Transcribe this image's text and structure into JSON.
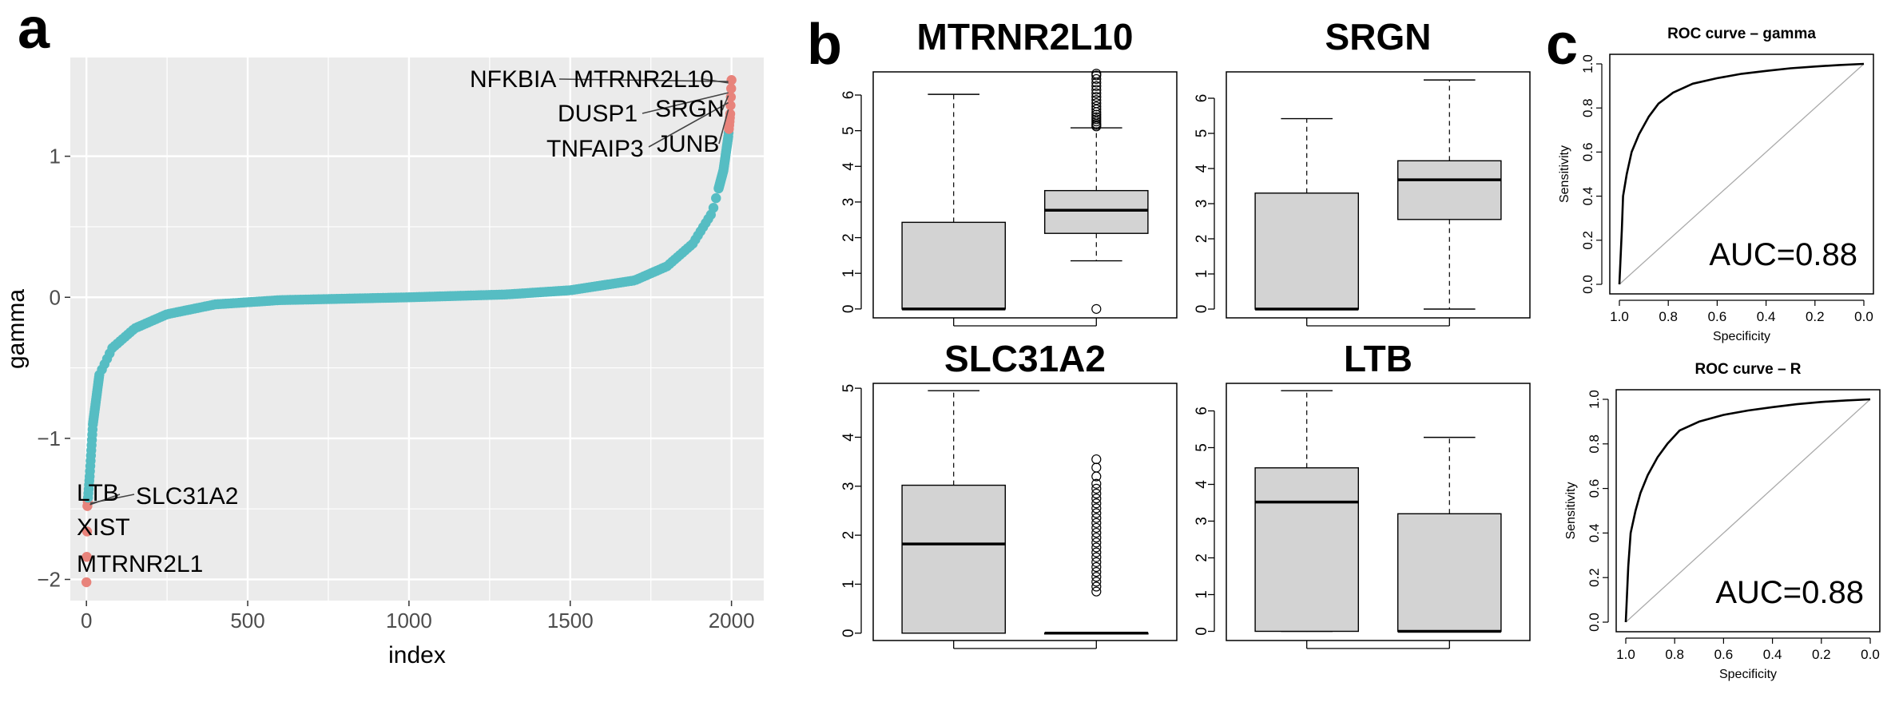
{
  "figure": {
    "panel_labels": [
      "a",
      "b",
      "c"
    ]
  },
  "chart_data": [
    {
      "id": "panel-a",
      "type": "scatter",
      "xlabel": "index",
      "ylabel": "gamma",
      "xlim": [
        -50,
        2100
      ],
      "ylim": [
        -2.15,
        1.7
      ],
      "xticks": [
        0,
        500,
        1000,
        1500,
        2000
      ],
      "yticks": [
        -2,
        -1,
        0,
        1
      ],
      "ytick_labels": [
        "−2",
        "−1",
        "0",
        "1"
      ],
      "n_points": 2000,
      "colors": {
        "normal": "#56bdc3",
        "highlight": "#e8837b",
        "background": "#ebebeb",
        "grid": "#ffffff"
      },
      "curve_anchors": [
        {
          "x": 0,
          "y": -2.02
        },
        {
          "x": 3,
          "y": -1.48
        },
        {
          "x": 10,
          "y": -1.27
        },
        {
          "x": 20,
          "y": -0.9
        },
        {
          "x": 40,
          "y": -0.55
        },
        {
          "x": 80,
          "y": -0.36
        },
        {
          "x": 150,
          "y": -0.22
        },
        {
          "x": 250,
          "y": -0.12
        },
        {
          "x": 400,
          "y": -0.05
        },
        {
          "x": 600,
          "y": -0.02
        },
        {
          "x": 1000,
          "y": 0
        },
        {
          "x": 1300,
          "y": 0.02
        },
        {
          "x": 1500,
          "y": 0.05
        },
        {
          "x": 1700,
          "y": 0.12
        },
        {
          "x": 1800,
          "y": 0.22
        },
        {
          "x": 1880,
          "y": 0.38
        },
        {
          "x": 1940,
          "y": 0.6
        },
        {
          "x": 1975,
          "y": 0.9
        },
        {
          "x": 1990,
          "y": 1.14
        },
        {
          "x": 1996,
          "y": 1.3
        },
        {
          "x": 2000,
          "y": 1.54
        }
      ],
      "highlight_low_count": 4,
      "highlight_high_count": 8,
      "labels": [
        {
          "text": "NFKBIA",
          "x": 2000,
          "y": 1.53
        },
        {
          "text": "MTRNR2L10",
          "x": 2000,
          "y": 1.52
        },
        {
          "text": "DUSP1",
          "x": 2000,
          "y": 1.45
        },
        {
          "text": "SRGN",
          "x": 2000,
          "y": 1.43
        },
        {
          "text": "TNFAIP3",
          "x": 2000,
          "y": 1.38
        },
        {
          "text": "JUNB",
          "x": 2000,
          "y": 1.33
        },
        {
          "text": "LTB",
          "x": 1,
          "y": -1.47
        },
        {
          "text": "SLC31A2",
          "x": 2,
          "y": -1.46
        },
        {
          "text": "XIST",
          "x": 3,
          "y": -1.49
        },
        {
          "text": "MTRNR2L1",
          "x": 0,
          "y": -2.02
        }
      ]
    },
    {
      "id": "panel-b",
      "type": "box",
      "box_fill": "#d3d3d3",
      "panels": [
        {
          "title": "MTRNR2L10",
          "ylim": [
            -0.25,
            6.65
          ],
          "yticks": [
            0,
            1,
            2,
            3,
            4,
            5,
            6
          ],
          "boxes": [
            {
              "min": 0,
              "q1": 0,
              "median": 0,
              "q3": 2.43,
              "max": 6.02,
              "outliers": []
            },
            {
              "min": 1.35,
              "q1": 2.12,
              "median": 2.77,
              "q3": 3.32,
              "max": 5.08,
              "outliers": [
                0,
                5.12,
                5.16,
                5.2,
                5.26,
                5.32,
                5.38,
                5.45,
                5.52,
                5.6,
                5.68,
                5.77,
                5.86,
                5.95,
                6.05,
                6.15,
                6.25,
                6.35,
                6.45,
                6.55,
                6.6
              ]
            }
          ]
        },
        {
          "title": "SRGN",
          "ylim": [
            -0.25,
            6.75
          ],
          "yticks": [
            0,
            1,
            2,
            3,
            4,
            5,
            6
          ],
          "boxes": [
            {
              "min": 0,
              "q1": 0,
              "median": 0,
              "q3": 3.3,
              "max": 5.42,
              "outliers": []
            },
            {
              "min": 0,
              "q1": 2.55,
              "median": 3.68,
              "q3": 4.22,
              "max": 6.52,
              "outliers": []
            }
          ]
        },
        {
          "title": "SLC31A2",
          "ylim": [
            -0.15,
            5.1
          ],
          "yticks": [
            0,
            1,
            2,
            3,
            4,
            5
          ],
          "boxes": [
            {
              "min": 0,
              "q1": 0,
              "median": 1.82,
              "q3": 3.02,
              "max": 4.95,
              "outliers": []
            },
            {
              "min": 0,
              "q1": 0,
              "median": 0,
              "q3": 0,
              "max": 0,
              "outliers": [
                0.85,
                0.95,
                1.05,
                1.15,
                1.25,
                1.35,
                1.45,
                1.55,
                1.65,
                1.75,
                1.85,
                1.95,
                2.05,
                2.15,
                2.25,
                2.35,
                2.45,
                2.55,
                2.65,
                2.75,
                2.85,
                2.95,
                3.05,
                3.2,
                3.38,
                3.55
              ]
            }
          ]
        },
        {
          "title": "LTB",
          "ylim": [
            -0.25,
            6.75
          ],
          "yticks": [
            0,
            1,
            2,
            3,
            4,
            5,
            6
          ],
          "boxes": [
            {
              "min": 0,
              "q1": 0,
              "median": 3.52,
              "q3": 4.45,
              "max": 6.55,
              "outliers": []
            },
            {
              "min": 0,
              "q1": 0,
              "median": 0,
              "q3": 3.2,
              "max": 5.28,
              "outliers": []
            }
          ]
        }
      ]
    },
    {
      "id": "panel-c",
      "type": "line",
      "xlabel": "Specificity",
      "ylabel": "Sensitivity",
      "xticks": [
        1.0,
        0.8,
        0.6,
        0.4,
        0.2,
        0.0
      ],
      "xtick_labels": [
        "1.0",
        "0.8",
        "0.6",
        "0.4",
        "0.2",
        "0.0"
      ],
      "yticks": [
        0.0,
        0.2,
        0.4,
        0.6,
        0.8,
        1.0
      ],
      "ytick_labels": [
        "0.0",
        "0.2",
        "0.4",
        "0.6",
        "0.8",
        "1.0"
      ],
      "panels": [
        {
          "title": "ROC curve – gamma",
          "auc_text": "AUC=0.88",
          "curve": [
            [
              1.0,
              0.0
            ],
            [
              0.99,
              0.25
            ],
            [
              0.985,
              0.4
            ],
            [
              0.97,
              0.5
            ],
            [
              0.95,
              0.6
            ],
            [
              0.92,
              0.68
            ],
            [
              0.88,
              0.76
            ],
            [
              0.84,
              0.82
            ],
            [
              0.78,
              0.87
            ],
            [
              0.7,
              0.91
            ],
            [
              0.6,
              0.935
            ],
            [
              0.5,
              0.955
            ],
            [
              0.4,
              0.968
            ],
            [
              0.3,
              0.98
            ],
            [
              0.2,
              0.988
            ],
            [
              0.1,
              0.995
            ],
            [
              0.0,
              1.0
            ]
          ]
        },
        {
          "title": "ROC curve – R",
          "auc_text": "AUC=0.88",
          "curve": [
            [
              1.0,
              0.0
            ],
            [
              0.99,
              0.25
            ],
            [
              0.98,
              0.4
            ],
            [
              0.96,
              0.5
            ],
            [
              0.94,
              0.58
            ],
            [
              0.91,
              0.66
            ],
            [
              0.87,
              0.74
            ],
            [
              0.83,
              0.8
            ],
            [
              0.78,
              0.86
            ],
            [
              0.7,
              0.9
            ],
            [
              0.6,
              0.93
            ],
            [
              0.5,
              0.95
            ],
            [
              0.4,
              0.965
            ],
            [
              0.3,
              0.978
            ],
            [
              0.2,
              0.988
            ],
            [
              0.1,
              0.995
            ],
            [
              0.0,
              1.0
            ]
          ]
        }
      ]
    }
  ]
}
